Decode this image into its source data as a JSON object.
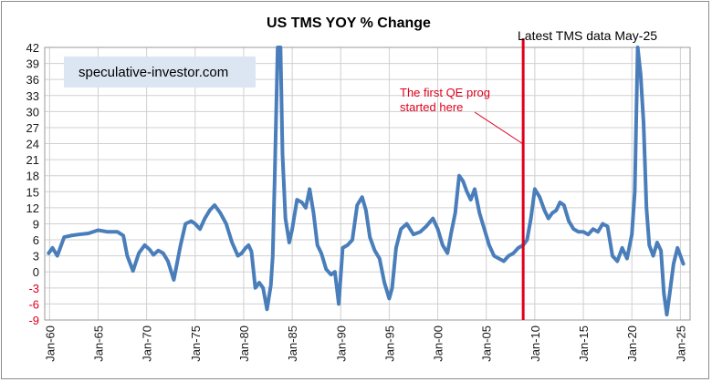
{
  "chart_data": {
    "type": "line",
    "title": "US TMS YOY % Change",
    "source_label": "speculative-investor.com",
    "latest_label": "Latest TMS data May-25",
    "annotation": "The first QE prog started here",
    "annotation_lines": [
      "The first QE prog",
      "started here"
    ],
    "xlabel": "",
    "ylabel": "",
    "ylim": [
      -9,
      42
    ],
    "xlim": [
      1959.5,
      2026.0
    ],
    "yticks": [
      42,
      39,
      36,
      33,
      30,
      27,
      24,
      21,
      18,
      15,
      12,
      9,
      6,
      3,
      0,
      -3,
      -6,
      -9
    ],
    "ytick_labels": [
      "42",
      "39",
      "36",
      "33",
      "30",
      "27",
      "24",
      "21",
      "18",
      "15",
      "12",
      "9",
      "6",
      "3",
      "0",
      "-3",
      "-6",
      "-9"
    ],
    "xticks": [
      1960,
      1965,
      1970,
      1975,
      1980,
      1985,
      1990,
      1995,
      2000,
      2005,
      2010,
      2015,
      2020,
      2025
    ],
    "xtick_labels": [
      "Jan-60",
      "Jan-65",
      "Jan-70",
      "Jan-75",
      "Jan-80",
      "Jan-85",
      "Jan-90",
      "Jan-95",
      "Jan-00",
      "Jan-05",
      "Jan-10",
      "Jan-15",
      "Jan-20",
      "Jan-25"
    ],
    "qe_start_year": 2008.8,
    "colors": {
      "line": "#4a7ebb",
      "marker": "#e0001b",
      "annotation": "#e0001b"
    },
    "series": [
      {
        "name": "US TMS YOY % Change",
        "x": [
          1959.9,
          1960.3,
          1960.8,
          1961.5,
          1962.2,
          1963.0,
          1964.0,
          1965.0,
          1966.0,
          1967.0,
          1967.6,
          1968.0,
          1968.6,
          1969.2,
          1969.8,
          1970.3,
          1970.7,
          1971.2,
          1971.7,
          1972.2,
          1972.8,
          1973.5,
          1974.0,
          1974.6,
          1975.0,
          1975.5,
          1976.0,
          1976.5,
          1977.0,
          1977.6,
          1978.2,
          1978.8,
          1979.4,
          1979.8,
          1980.2,
          1980.5,
          1980.8,
          1981.2,
          1981.6,
          1982.0,
          1982.4,
          1982.8,
          1983.0,
          1983.2,
          1983.5,
          1983.8,
          1984.0,
          1984.3,
          1984.7,
          1985.0,
          1985.5,
          1986.0,
          1986.4,
          1986.8,
          1987.2,
          1987.6,
          1988.0,
          1988.5,
          1989.0,
          1989.4,
          1989.8,
          1990.2,
          1990.7,
          1991.2,
          1991.7,
          1992.2,
          1992.6,
          1993.0,
          1993.5,
          1994.0,
          1994.5,
          1995.0,
          1995.3,
          1995.7,
          1996.2,
          1996.8,
          1997.5,
          1998.2,
          1998.8,
          1999.5,
          2000.0,
          2000.5,
          2001.0,
          2001.4,
          2001.8,
          2002.2,
          2002.6,
          2003.0,
          2003.4,
          2003.8,
          2004.3,
          2004.8,
          2005.3,
          2005.8,
          2006.3,
          2006.8,
          2007.3,
          2007.8,
          2008.3,
          2008.8,
          2009.2,
          2009.6,
          2010.0,
          2010.5,
          2011.0,
          2011.4,
          2011.8,
          2012.2,
          2012.6,
          2013.0,
          2013.5,
          2014.0,
          2014.5,
          2015.0,
          2015.5,
          2016.0,
          2016.5,
          2017.0,
          2017.5,
          2018.0,
          2018.5,
          2019.0,
          2019.5,
          2020.0,
          2020.3,
          2020.6,
          2020.9,
          2021.2,
          2021.5,
          2021.8,
          2022.2,
          2022.6,
          2023.0,
          2023.3,
          2023.6,
          2023.9,
          2024.3,
          2024.7,
          2025.0,
          2025.3
        ],
        "y": [
          3.5,
          4.5,
          3.0,
          6.5,
          6.8,
          7.0,
          7.2,
          7.8,
          7.5,
          7.5,
          6.8,
          3.0,
          0.2,
          3.5,
          5.0,
          4.2,
          3.2,
          4.0,
          3.5,
          2.0,
          -1.5,
          5.0,
          9.0,
          9.5,
          9.0,
          8.0,
          10.0,
          11.5,
          12.5,
          11.0,
          9.0,
          5.5,
          3.0,
          3.5,
          4.5,
          5.0,
          3.8,
          -3.0,
          -2.0,
          -3.0,
          -7.0,
          -2.5,
          3.0,
          18.0,
          42.0,
          42.0,
          22.0,
          10.0,
          5.5,
          8.0,
          13.5,
          13.0,
          12.0,
          15.5,
          11.0,
          5.0,
          3.5,
          0.5,
          -0.5,
          0.0,
          -6.0,
          4.5,
          5.0,
          6.0,
          12.5,
          14.0,
          11.5,
          6.5,
          4.0,
          2.5,
          -2.0,
          -5.0,
          -3.0,
          4.5,
          8.0,
          9.0,
          7.0,
          7.5,
          8.5,
          10.0,
          8.0,
          5.0,
          3.5,
          7.5,
          11.0,
          18.0,
          17.0,
          15.0,
          13.5,
          15.5,
          11.0,
          8.0,
          5.0,
          3.0,
          2.5,
          2.0,
          3.0,
          3.5,
          4.5,
          5.0,
          6.0,
          10.0,
          15.5,
          14.0,
          11.5,
          10.0,
          11.0,
          11.5,
          13.0,
          12.5,
          9.5,
          8.0,
          7.5,
          7.5,
          7.0,
          8.0,
          7.5,
          9.0,
          8.5,
          3.0,
          2.0,
          4.5,
          2.5,
          7.0,
          15.0,
          42.0,
          37.0,
          28.0,
          12.0,
          5.0,
          3.0,
          5.5,
          4.0,
          -4.0,
          -8.0,
          -4.0,
          1.5,
          4.5,
          3.0,
          1.5
        ]
      }
    ]
  }
}
